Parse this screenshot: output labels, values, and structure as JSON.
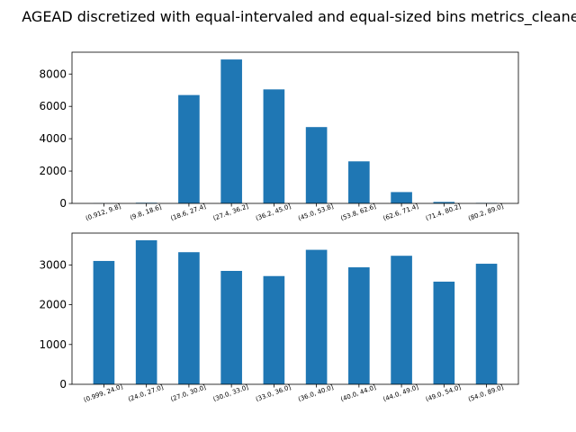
{
  "title": "AGEAD discretized with equal-intervaled and equal-sized bins metrics_cleaned",
  "bar_color": "#1f77b4",
  "chart_data": [
    {
      "type": "bar",
      "categories": [
        "(0.912, 9.8]",
        "(9.8, 18.6]",
        "(18.6, 27.4]",
        "(27.4, 36.2]",
        "(36.2, 45.0]",
        "(45.0, 53.8]",
        "(53.8, 62.6]",
        "(62.6, 71.4]",
        "(71.4, 80.2]",
        "(80.2, 89.0]"
      ],
      "values": [
        10,
        40,
        6700,
        8900,
        7050,
        4720,
        2600,
        700,
        90,
        30
      ],
      "ylim": [
        0,
        9350
      ],
      "yticks": [
        0,
        2000,
        4000,
        6000,
        8000
      ]
    },
    {
      "type": "bar",
      "categories": [
        "(0.999, 24.0]",
        "(24.0, 27.0]",
        "(27.0, 30.0]",
        "(30.0, 33.0]",
        "(33.0, 36.0]",
        "(36.0, 40.0]",
        "(40.0, 44.0]",
        "(44.0, 49.0]",
        "(49.0, 54.0]",
        "(54.0, 89.0]"
      ],
      "values": [
        3100,
        3620,
        3320,
        2850,
        2720,
        3380,
        2940,
        3230,
        2580,
        3030
      ],
      "ylim": [
        0,
        3800
      ],
      "yticks": [
        0,
        1000,
        2000,
        3000
      ]
    }
  ]
}
